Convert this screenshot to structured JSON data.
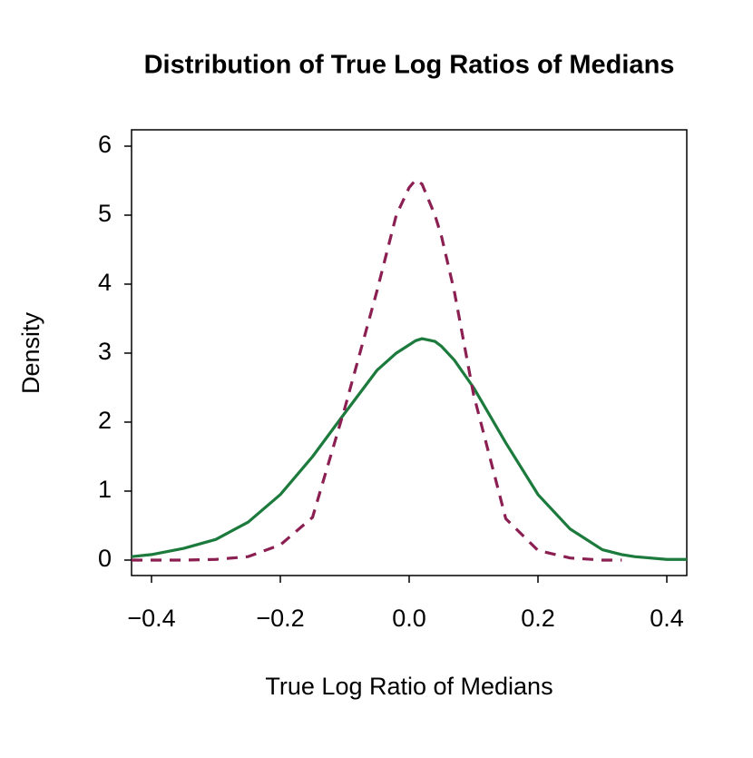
{
  "chart_data": {
    "type": "line",
    "title": "Distribution of True Log Ratios of Medians",
    "x_label": "True Log Ratio of Medians",
    "y_label": "Density",
    "x": [
      -0.431,
      -0.4,
      -0.35,
      -0.3,
      -0.25,
      -0.2,
      -0.15,
      -0.1,
      -0.05,
      -0.02,
      0,
      0.01,
      0.02,
      0.04,
      0.05,
      0.07,
      0.1,
      0.15,
      0.2,
      0.25,
      0.3,
      0.33,
      0.35,
      0.4,
      0.431
    ],
    "series": [
      {
        "color": "#1b7a3c",
        "dash": false,
        "values": [
          0.05,
          0.08,
          0.17,
          0.3,
          0.55,
          0.95,
          1.5,
          2.13,
          2.75,
          3.0,
          3.12,
          3.18,
          3.21,
          3.17,
          3.1,
          2.9,
          2.5,
          1.7,
          0.95,
          0.45,
          0.15,
          0.08,
          0.05,
          0.01,
          0.01
        ]
      },
      {
        "color": "#8b1f52",
        "dash": true,
        "values": [
          0,
          0,
          0,
          0.01,
          0.05,
          0.22,
          0.62,
          2.2,
          3.9,
          5.0,
          5.4,
          5.51,
          5.45,
          5.0,
          4.7,
          3.9,
          2.4,
          0.6,
          0.14,
          0.03,
          0,
          0,
          null,
          null,
          null
        ]
      }
    ],
    "xlim": [
      -0.431,
      0.431
    ],
    "ylim": [
      -0.224,
      6.237
    ],
    "xticks": [
      {
        "value": -0.4,
        "label": "−0.4"
      },
      {
        "value": -0.2,
        "label": "−0.2"
      },
      {
        "value": 0,
        "label": "0.0"
      },
      0.2,
      0.4
    ],
    "yticks": [
      0,
      1,
      2,
      3,
      4,
      5,
      6
    ]
  }
}
